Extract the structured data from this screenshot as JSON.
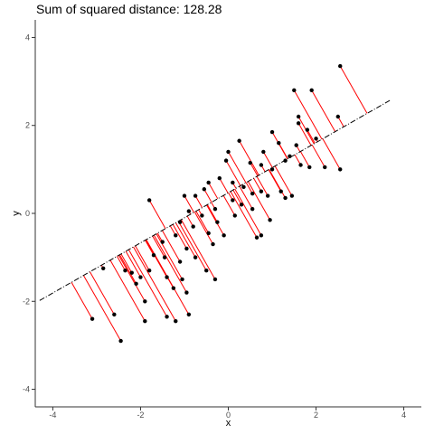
{
  "chart_data": {
    "type": "scatter",
    "title": "Sum of squared distance: 128.28",
    "xlabel": "x",
    "ylabel": "y",
    "xlim": [
      -4.4,
      4.4
    ],
    "ylim": [
      -4.4,
      4.4
    ],
    "x_ticks": [
      -4,
      -2,
      0,
      2,
      4
    ],
    "y_ticks": [
      -4,
      -2,
      0,
      2,
      4
    ],
    "x_tick_labels": [
      "-4",
      "-2",
      "0",
      "2",
      "4"
    ],
    "y_tick_labels": [
      "-4",
      "-2",
      "0",
      "2",
      "4"
    ],
    "grid": false,
    "colors": {
      "points": "#000000",
      "residuals": "#ff0000",
      "line": "#000000"
    },
    "fitted_line": {
      "style": "dot-dash",
      "intercept": 0.47,
      "slope": 0.57,
      "x_range": [
        -4.3,
        3.7
      ]
    },
    "points": [
      {
        "x": 2.55,
        "y": 3.35
      },
      {
        "x": 1.5,
        "y": 2.8
      },
      {
        "x": 1.9,
        "y": 2.8
      },
      {
        "x": 1.6,
        "y": 2.2
      },
      {
        "x": 2.5,
        "y": 2.2
      },
      {
        "x": 1.6,
        "y": 2.05
      },
      {
        "x": 1.8,
        "y": 1.9
      },
      {
        "x": 2.0,
        "y": 1.7
      },
      {
        "x": 0.25,
        "y": 1.65
      },
      {
        "x": 1.0,
        "y": 1.85
      },
      {
        "x": 1.15,
        "y": 1.6
      },
      {
        "x": 0.8,
        "y": 1.4
      },
      {
        "x": 1.4,
        "y": 1.3
      },
      {
        "x": 1.55,
        "y": 1.55
      },
      {
        "x": 1.3,
        "y": 1.2
      },
      {
        "x": 2.2,
        "y": 1.05
      },
      {
        "x": 2.55,
        "y": 1.0
      },
      {
        "x": 1.85,
        "y": 1.05
      },
      {
        "x": 1.65,
        "y": 1.1
      },
      {
        "x": 1.0,
        "y": 1.0
      },
      {
        "x": 0.75,
        "y": 1.1
      },
      {
        "x": 0.5,
        "y": 1.15
      },
      {
        "x": 0.0,
        "y": 1.4
      },
      {
        "x": -0.05,
        "y": 1.2
      },
      {
        "x": -0.2,
        "y": 0.8
      },
      {
        "x": 0.1,
        "y": 0.7
      },
      {
        "x": 0.35,
        "y": 0.6
      },
      {
        "x": 0.55,
        "y": 0.45
      },
      {
        "x": 0.75,
        "y": 0.5
      },
      {
        "x": 1.2,
        "y": 0.5
      },
      {
        "x": 1.45,
        "y": 0.4
      },
      {
        "x": 1.3,
        "y": 0.35
      },
      {
        "x": 0.9,
        "y": 0.4
      },
      {
        "x": -0.45,
        "y": 0.7
      },
      {
        "x": -0.55,
        "y": 0.55
      },
      {
        "x": -0.75,
        "y": 0.4
      },
      {
        "x": -1.0,
        "y": 0.4
      },
      {
        "x": -1.8,
        "y": 0.3
      },
      {
        "x": -0.3,
        "y": 0.1
      },
      {
        "x": 0.1,
        "y": 0.3
      },
      {
        "x": 0.3,
        "y": 0.2
      },
      {
        "x": 0.55,
        "y": 0.1
      },
      {
        "x": 0.95,
        "y": -0.15
      },
      {
        "x": -0.9,
        "y": 0.05
      },
      {
        "x": -0.6,
        "y": -0.05
      },
      {
        "x": 0.15,
        "y": -0.05
      },
      {
        "x": -0.25,
        "y": -0.2
      },
      {
        "x": -1.1,
        "y": -0.2
      },
      {
        "x": -0.8,
        "y": -0.3
      },
      {
        "x": -0.45,
        "y": -0.45
      },
      {
        "x": -0.1,
        "y": -0.5
      },
      {
        "x": -0.35,
        "y": -0.7
      },
      {
        "x": 0.65,
        "y": -0.55
      },
      {
        "x": 0.75,
        "y": -0.5
      },
      {
        "x": -1.2,
        "y": -0.5
      },
      {
        "x": -1.5,
        "y": -0.65
      },
      {
        "x": -0.95,
        "y": -0.8
      },
      {
        "x": -0.75,
        "y": -1.0
      },
      {
        "x": -1.1,
        "y": -1.1
      },
      {
        "x": -1.45,
        "y": -1.0
      },
      {
        "x": -1.7,
        "y": -0.95
      },
      {
        "x": -0.5,
        "y": -1.3
      },
      {
        "x": -0.3,
        "y": -1.5
      },
      {
        "x": -1.05,
        "y": -1.5
      },
      {
        "x": -1.4,
        "y": -1.45
      },
      {
        "x": -1.8,
        "y": -1.3
      },
      {
        "x": -2.0,
        "y": -1.45
      },
      {
        "x": -2.2,
        "y": -1.35
      },
      {
        "x": -2.35,
        "y": -1.3
      },
      {
        "x": -2.85,
        "y": -1.25
      },
      {
        "x": -2.1,
        "y": -1.6
      },
      {
        "x": -1.25,
        "y": -1.7
      },
      {
        "x": -0.95,
        "y": -1.8
      },
      {
        "x": -1.9,
        "y": -2.0
      },
      {
        "x": -2.6,
        "y": -2.3
      },
      {
        "x": -3.1,
        "y": -2.4
      },
      {
        "x": -1.9,
        "y": -2.45
      },
      {
        "x": -1.4,
        "y": -2.35
      },
      {
        "x": -1.2,
        "y": -2.45
      },
      {
        "x": -0.9,
        "y": -2.3
      },
      {
        "x": -2.45,
        "y": -2.9
      }
    ]
  }
}
